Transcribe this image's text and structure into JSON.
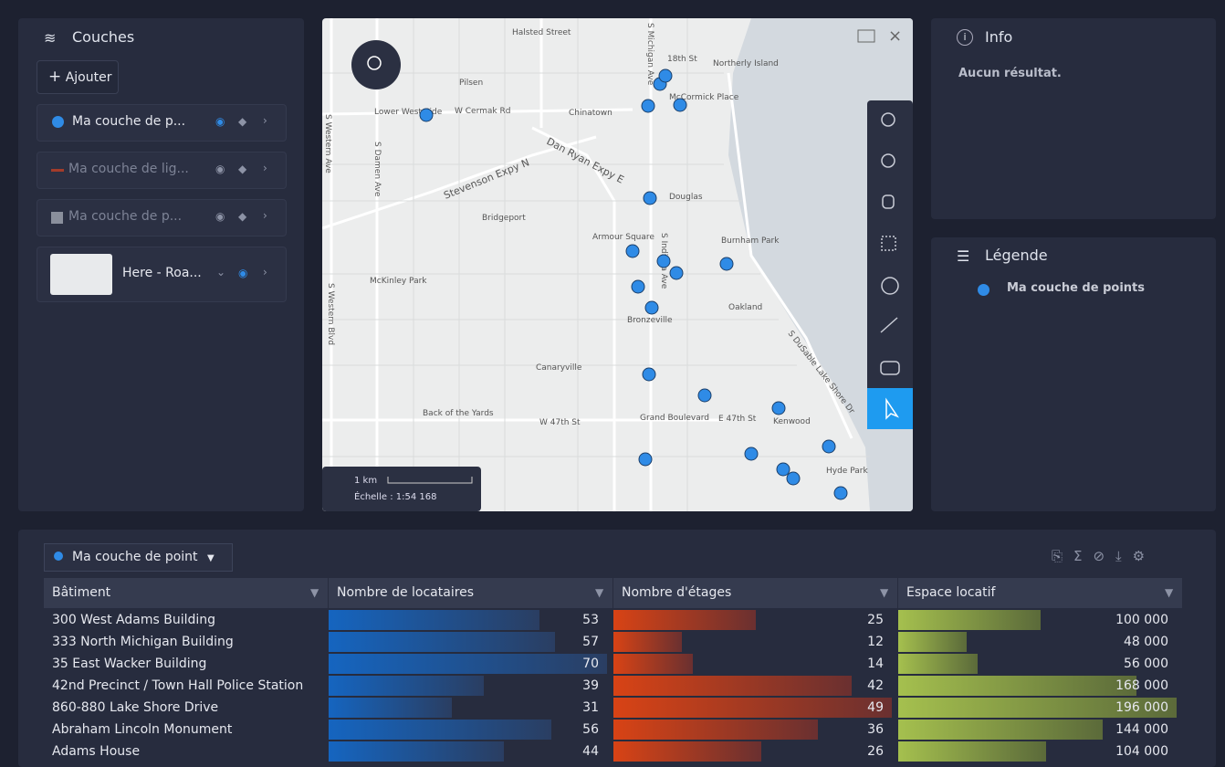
{
  "layers_panel": {
    "title": "Couches",
    "add_button": "Ajouter",
    "layers": [
      "Ma couche de p...",
      "Ma couche de lig...",
      "Ma couche de p...",
      "Here - Roa..."
    ]
  },
  "map": {
    "labels": [
      "Halsted Street",
      "18th St",
      "Northerly Island",
      "Pilsen",
      "McCormick Place",
      "Chinatown",
      "Lower West Side",
      "W Cermak Rd",
      "Stevenson Expy N",
      "Dan Ryan Expy E",
      "Douglas",
      "Bridgeport",
      "Armour Square",
      "Burnham Park",
      "McKinley Park",
      "Bronzeville",
      "Oakland",
      "Canaryville",
      "Back of the Yards",
      "Grand Boulevard",
      "W 47th St",
      "E 47th St",
      "Kenwood",
      "S Western Ave",
      "S Damen Ave",
      "S Michigan Ave",
      "S Indiana Ave",
      "S DuSable Lake Shore Dr",
      "S Western Blvd",
      "Hyde Park"
    ],
    "scale": {
      "distance": "1 km",
      "ratio": "Échelle : 1:54 168"
    }
  },
  "info_panel": {
    "title": "Info",
    "message": "Aucun résultat."
  },
  "legend_panel": {
    "title": "Légende",
    "items": [
      "Ma couche de points"
    ]
  },
  "table": {
    "layer_select": "Ma couche de point",
    "headers": [
      "Bâtiment",
      "Nombre de locataires",
      "Nombre d'étages",
      "Espace locatif"
    ],
    "rows": [
      [
        "300 West Adams Building",
        53,
        25,
        {
          "value": 100000,
          "label": "100 000"
        }
      ],
      [
        "333 North Michigan Building",
        57,
        12,
        {
          "value": 48000,
          "label": "48 000"
        }
      ],
      [
        "35 East Wacker Building",
        70,
        14,
        {
          "value": 56000,
          "label": "56 000"
        }
      ],
      [
        "42nd Precinct / Town Hall Police Station",
        39,
        42,
        {
          "value": 168000,
          "label": "168 000"
        }
      ],
      [
        "860-880 Lake Shore Drive",
        31,
        49,
        {
          "value": 196000,
          "label": "196 000"
        }
      ],
      [
        "Abraham Lincoln Monument",
        56,
        36,
        {
          "value": 144000,
          "label": "144 000"
        }
      ],
      [
        "Adams House",
        44,
        26,
        {
          "value": 104000,
          "label": "104 000"
        }
      ]
    ]
  }
}
